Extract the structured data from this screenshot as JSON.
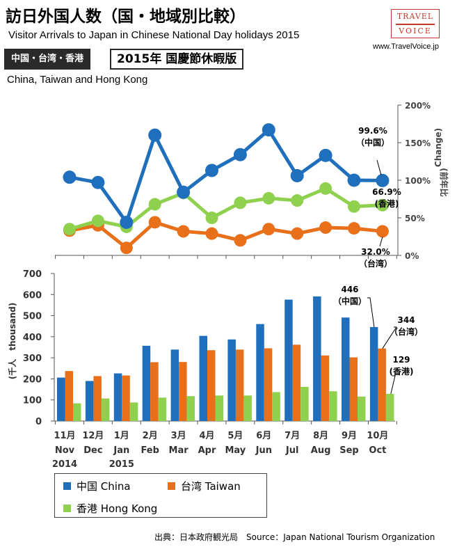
{
  "header": {
    "title": "訪日外国人数（国・地域別比較）",
    "subtitle": "Visitor Arrivals to Japan in Chinese National Day holidays 2015",
    "logo_line1": "TRAVEL",
    "logo_line2": "VOICE",
    "site": "www.TravelVoice.jp",
    "tag": "中国・台湾・香港",
    "edition": "2015年 国慶節休暇版",
    "region": "China, Taiwan and Hong Kong"
  },
  "footer": {
    "source": "出典：日本政府観光局　Source：Japan  National Tourism  Organization"
  },
  "colors": {
    "china": "#1f6fbd",
    "taiwan": "#e8701a",
    "hongkong": "#8fd14f"
  },
  "legend": [
    {
      "key": "china",
      "label": "中国 China"
    },
    {
      "key": "taiwan",
      "label": "台湾 Taiwan"
    },
    {
      "key": "hongkong",
      "label": "香港 Hong Kong"
    }
  ],
  "chart_data": [
    {
      "type": "line",
      "ylabel_cn": "(前年比",
      "ylabel_en": "Change)",
      "ylim": [
        0,
        200
      ],
      "yticks": [
        "0%",
        "50%",
        "100%",
        "150%",
        "200%"
      ],
      "ytick_values": [
        0,
        50,
        100,
        150,
        200
      ],
      "series": [
        {
          "key": "china",
          "values": [
            104,
            97,
            44,
            160,
            84,
            113,
            134,
            167,
            106,
            133,
            100,
            99.6
          ]
        },
        {
          "key": "taiwan",
          "values": [
            33,
            40,
            10,
            44,
            32,
            29,
            20,
            35,
            29,
            37,
            36,
            32.0
          ]
        },
        {
          "key": "hongkong",
          "values": [
            35,
            46,
            38,
            68,
            83,
            50,
            70,
            76,
            73,
            89,
            65,
            66.9
          ]
        }
      ],
      "annotations": [
        {
          "series": "china",
          "value": "99.6%",
          "label": "（中国）"
        },
        {
          "series": "hongkong",
          "value": "66.9%",
          "label": "(香港)"
        },
        {
          "series": "taiwan",
          "value": "32.0%",
          "label": "（台湾）"
        }
      ]
    },
    {
      "type": "bar",
      "ylabel": "(千人　thousand)",
      "ylim": [
        0,
        700
      ],
      "yticks": [
        "0",
        "100",
        "200",
        "300",
        "400",
        "500",
        "600",
        "700"
      ],
      "ytick_values": [
        0,
        100,
        200,
        300,
        400,
        500,
        600,
        700
      ],
      "categories": [
        {
          "cn": "11月",
          "en": "Nov",
          "year": "2014"
        },
        {
          "cn": "12月",
          "en": "Dec",
          "year": ""
        },
        {
          "cn": "1月",
          "en": "Jan",
          "year": "2015"
        },
        {
          "cn": "2月",
          "en": "Feb",
          "year": ""
        },
        {
          "cn": "3月",
          "en": "Mar",
          "year": ""
        },
        {
          "cn": "4月",
          "en": "Apr",
          "year": ""
        },
        {
          "cn": "5月",
          "en": "May",
          "year": ""
        },
        {
          "cn": "6月",
          "en": "Jun",
          "year": ""
        },
        {
          "cn": "7月",
          "en": "Jul",
          "year": ""
        },
        {
          "cn": "8月",
          "en": "Aug",
          "year": ""
        },
        {
          "cn": "9月",
          "en": "Sep",
          "year": ""
        },
        {
          "cn": "10月",
          "en": "Oct",
          "year": ""
        }
      ],
      "series": [
        {
          "key": "china",
          "values": [
            206,
            190,
            226,
            357,
            339,
            404,
            387,
            460,
            576,
            591,
            491,
            446
          ]
        },
        {
          "key": "taiwan",
          "values": [
            237,
            213,
            216,
            279,
            280,
            336,
            339,
            345,
            362,
            311,
            302,
            344
          ]
        },
        {
          "key": "hongkong",
          "values": [
            84,
            107,
            88,
            111,
            118,
            121,
            121,
            137,
            162,
            141,
            116,
            129
          ]
        }
      ],
      "annotations": [
        {
          "series": "china",
          "value": "446",
          "label": "（中国）"
        },
        {
          "series": "taiwan",
          "value": "344",
          "label": "（台湾）"
        },
        {
          "series": "hongkong",
          "value": "129",
          "label": "(香港)"
        }
      ]
    }
  ]
}
